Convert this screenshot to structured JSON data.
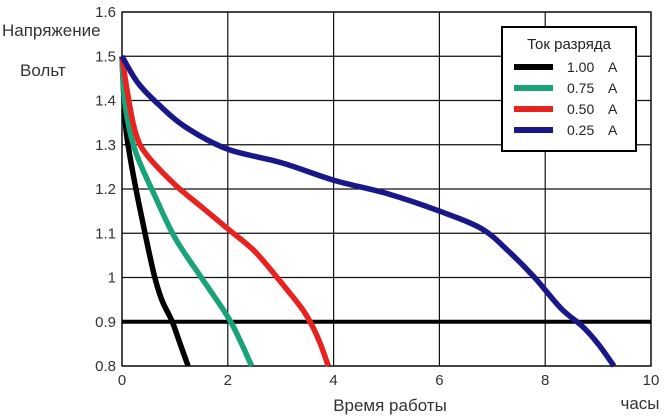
{
  "chart_data": {
    "type": "line",
    "title": "",
    "ylabel_line1": "Напряжение",
    "ylabel_line2": "Вольт",
    "xlabel": "Время работы",
    "xunit": "часы",
    "xlim": [
      0,
      10
    ],
    "ylim": [
      0.8,
      1.6
    ],
    "xticks": [
      0,
      2,
      4,
      6,
      8,
      10
    ],
    "yticks": [
      0.8,
      0.9,
      1,
      1.1,
      1.2,
      1.3,
      1.4,
      1.5,
      1.6
    ],
    "ytick_labels": [
      "0.8",
      "0.9",
      "1",
      "1.1",
      "1.2",
      "1.3",
      "1.4",
      "1.5",
      "1.6"
    ],
    "xgrid": [
      0,
      2,
      4,
      6,
      8,
      10
    ],
    "ygrid": [
      0.8,
      1.0,
      1.1,
      1.2,
      1.3,
      1.4,
      1.5,
      1.6
    ],
    "cutoff_line": {
      "y": 0.9,
      "color": "#000000"
    },
    "grid": true,
    "legend": {
      "title": "Ток разряда",
      "position": "top-right"
    },
    "series": [
      {
        "name": "1.00",
        "unit": "A",
        "color": "#000000",
        "points": [
          [
            0,
            1.5
          ],
          [
            0.03,
            1.42
          ],
          [
            0.08,
            1.33
          ],
          [
            0.2,
            1.24
          ],
          [
            0.4,
            1.12
          ],
          [
            0.6,
            1.01
          ],
          [
            0.75,
            0.95
          ],
          [
            0.95,
            0.9
          ],
          [
            1.1,
            0.85
          ],
          [
            1.25,
            0.8
          ]
        ]
      },
      {
        "name": "0.75",
        "unit": "A",
        "color": "#1aa37a",
        "points": [
          [
            0,
            1.5
          ],
          [
            0.05,
            1.4
          ],
          [
            0.15,
            1.33
          ],
          [
            0.3,
            1.27
          ],
          [
            0.6,
            1.19
          ],
          [
            1.0,
            1.09
          ],
          [
            1.5,
            1.0
          ],
          [
            1.9,
            0.93
          ],
          [
            2.1,
            0.89
          ],
          [
            2.3,
            0.84
          ],
          [
            2.45,
            0.8
          ]
        ]
      },
      {
        "name": "0.50",
        "unit": "A",
        "color": "#e8231f",
        "points": [
          [
            0,
            1.5
          ],
          [
            0.1,
            1.42
          ],
          [
            0.25,
            1.33
          ],
          [
            0.45,
            1.28
          ],
          [
            1.0,
            1.21
          ],
          [
            1.5,
            1.16
          ],
          [
            2.0,
            1.11
          ],
          [
            2.5,
            1.06
          ],
          [
            3.0,
            0.99
          ],
          [
            3.4,
            0.93
          ],
          [
            3.6,
            0.89
          ],
          [
            3.75,
            0.85
          ],
          [
            3.9,
            0.8
          ]
        ]
      },
      {
        "name": "0.25",
        "unit": "A",
        "color": "#18188a",
        "points": [
          [
            0,
            1.5
          ],
          [
            0.3,
            1.44
          ],
          [
            0.7,
            1.39
          ],
          [
            1.2,
            1.34
          ],
          [
            2.0,
            1.29
          ],
          [
            3.0,
            1.26
          ],
          [
            4.0,
            1.22
          ],
          [
            5.0,
            1.19
          ],
          [
            6.0,
            1.15
          ],
          [
            6.8,
            1.11
          ],
          [
            7.3,
            1.06
          ],
          [
            7.8,
            1.0
          ],
          [
            8.3,
            0.93
          ],
          [
            8.7,
            0.89
          ],
          [
            9.0,
            0.85
          ],
          [
            9.3,
            0.8
          ]
        ]
      }
    ]
  }
}
